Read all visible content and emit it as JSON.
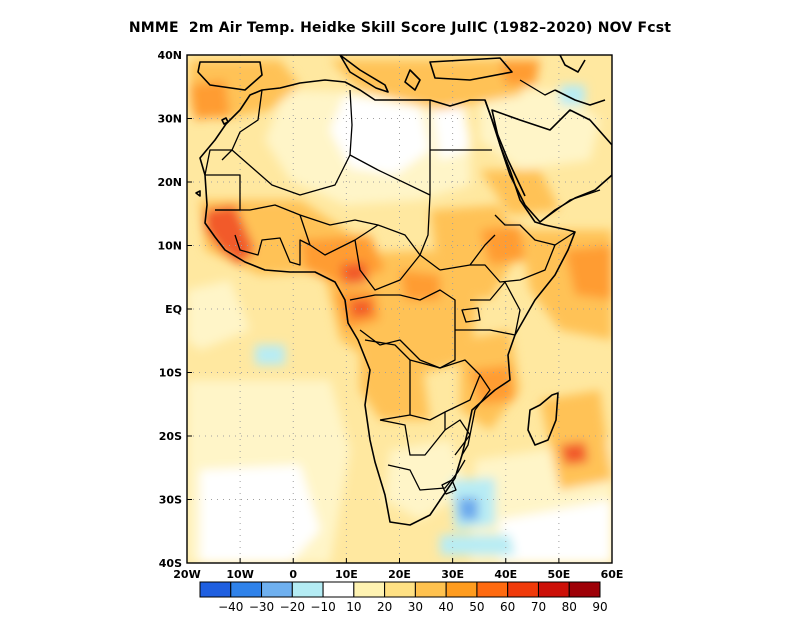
{
  "title": "NMME  2m Air Temp. Heidke Skill Score JulIC (1982–2020) NOV Fcst",
  "lat_labels": [
    "40N",
    "30N",
    "20N",
    "10N",
    "EQ",
    "10S",
    "20S",
    "30S",
    "40S"
  ],
  "lon_labels": [
    "20W",
    "10W",
    "0",
    "10E",
    "20E",
    "30E",
    "40E",
    "50E",
    "60E"
  ],
  "extent": {
    "lon_min": -20,
    "lon_max": 60,
    "lat_min": -40,
    "lat_max": 40
  },
  "colorbar": {
    "labels": [
      "−40",
      "−30",
      "−20",
      "−10",
      "10",
      "20",
      "30",
      "40",
      "50",
      "60",
      "70",
      "80",
      "90"
    ],
    "colors": [
      "#1f5fe0",
      "#2f82ea",
      "#6fb0ef",
      "#b4ecf4",
      "#ffffff",
      "#fff3b2",
      "#ffe184",
      "#ffc24f",
      "#ff9c1f",
      "#ff6a10",
      "#f03a0a",
      "#cc1008",
      "#9e0007"
    ]
  },
  "field_colors": {
    "background": "#ffe8a0",
    "light": "#fff5c8",
    "white": "#ffffff",
    "orange": "#ffc257",
    "deep_orange": "#ff9c32",
    "red": "#f25a2a",
    "cyan": "#b8ecf4",
    "blue": "#6ba8ec"
  },
  "map_colors": {
    "coastline": "#000000",
    "grid": "#a0a0a0"
  }
}
